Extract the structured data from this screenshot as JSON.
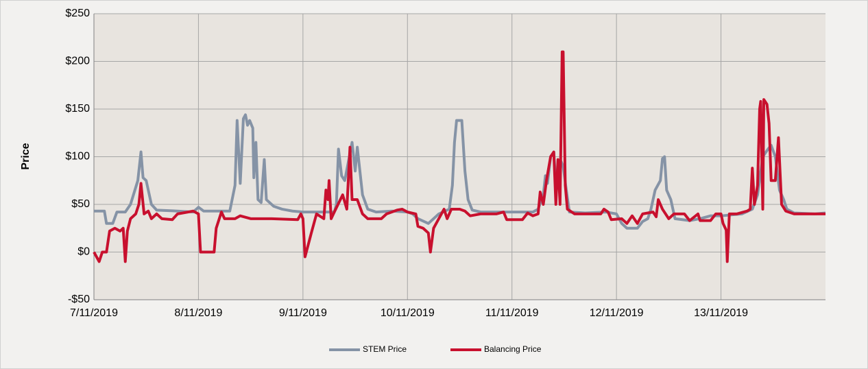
{
  "chart_data": {
    "type": "line",
    "y_label": "Price",
    "xlim": [
      7,
      14
    ],
    "xticks": [
      {
        "value": 7,
        "label": "7/11/2019"
      },
      {
        "value": 8,
        "label": "8/11/2019"
      },
      {
        "value": 9,
        "label": "9/11/2019"
      },
      {
        "value": 10,
        "label": "10/11/2019"
      },
      {
        "value": 11,
        "label": "11/11/2019"
      },
      {
        "value": 12,
        "label": "12/11/2019"
      },
      {
        "value": 13,
        "label": "13/11/2019"
      }
    ],
    "ylim": [
      -50,
      250
    ],
    "yticks": [
      {
        "value": -50,
        "label": "-$50"
      },
      {
        "value": 0,
        "label": "$0"
      },
      {
        "value": 50,
        "label": "$50"
      },
      {
        "value": 100,
        "label": "$100"
      },
      {
        "value": 150,
        "label": "$150"
      },
      {
        "value": 200,
        "label": "$200"
      },
      {
        "value": 250,
        "label": "$250"
      }
    ],
    "grid": true,
    "legend": "bottom",
    "series": [
      {
        "name": "STEM Price",
        "color": "#8593a6",
        "x": [
          7.0,
          7.1,
          7.12,
          7.18,
          7.22,
          7.3,
          7.35,
          7.42,
          7.45,
          7.47,
          7.5,
          7.55,
          7.6,
          7.8,
          7.95,
          8.0,
          8.05,
          8.3,
          8.35,
          8.37,
          8.4,
          8.43,
          8.45,
          8.47,
          8.49,
          8.52,
          8.53,
          8.55,
          8.57,
          8.6,
          8.63,
          8.65,
          8.72,
          8.8,
          8.9,
          9.0,
          9.3,
          9.32,
          9.34,
          9.37,
          9.4,
          9.47,
          9.5,
          9.52,
          9.57,
          9.62,
          9.7,
          9.85,
          10.0,
          10.05,
          10.1,
          10.2,
          10.25,
          10.3,
          10.4,
          10.43,
          10.45,
          10.47,
          10.52,
          10.55,
          10.58,
          10.62,
          10.7,
          11.0,
          11.2,
          11.25,
          11.3,
          11.32,
          11.34,
          11.37,
          11.4,
          11.42,
          11.47,
          11.49,
          11.52,
          11.55,
          11.7,
          11.9,
          12.0,
          12.05,
          12.1,
          12.2,
          12.25,
          12.3,
          12.33,
          12.37,
          12.42,
          12.44,
          12.46,
          12.48,
          12.52,
          12.56,
          12.7,
          12.8,
          12.9,
          13.0,
          13.2,
          13.3,
          13.35,
          13.4,
          13.45,
          13.48,
          13.52,
          13.56,
          13.6,
          13.63,
          13.7,
          13.9,
          14.0
        ],
        "values": [
          43,
          43,
          30,
          30,
          42,
          42,
          50,
          75,
          105,
          78,
          75,
          50,
          44,
          43,
          42,
          47,
          43,
          43,
          70,
          138,
          72,
          140,
          144,
          133,
          138,
          130,
          78,
          115,
          55,
          52,
          97,
          55,
          48,
          45,
          43,
          42,
          42,
          50,
          108,
          80,
          75,
          115,
          85,
          110,
          60,
          45,
          42,
          43,
          42,
          40,
          35,
          30,
          35,
          40,
          45,
          70,
          115,
          138,
          138,
          85,
          55,
          44,
          42,
          42,
          42,
          45,
          60,
          80,
          72,
          100,
          105,
          72,
          95,
          90,
          65,
          42,
          41,
          42,
          40,
          30,
          25,
          25,
          32,
          35,
          45,
          65,
          75,
          98,
          100,
          65,
          55,
          35,
          33,
          35,
          38,
          38,
          40,
          45,
          60,
          100,
          108,
          112,
          100,
          65,
          55,
          45,
          41,
          40,
          41
        ]
      },
      {
        "name": "Balancing Price",
        "color": "#c8102e",
        "x": [
          7.0,
          7.05,
          7.08,
          7.12,
          7.15,
          7.2,
          7.25,
          7.28,
          7.3,
          7.32,
          7.35,
          7.4,
          7.43,
          7.45,
          7.48,
          7.52,
          7.55,
          7.6,
          7.65,
          7.75,
          7.8,
          7.9,
          7.95,
          8.0,
          8.02,
          8.15,
          8.17,
          8.22,
          8.25,
          8.35,
          8.4,
          8.5,
          8.7,
          8.95,
          8.98,
          9.0,
          9.02,
          9.08,
          9.13,
          9.2,
          9.22,
          9.24,
          9.25,
          9.27,
          9.3,
          9.38,
          9.42,
          9.45,
          9.47,
          9.52,
          9.57,
          9.62,
          9.75,
          9.8,
          9.9,
          9.95,
          10.0,
          10.08,
          10.1,
          10.15,
          10.2,
          10.22,
          10.25,
          10.3,
          10.35,
          10.38,
          10.42,
          10.5,
          10.55,
          10.6,
          10.7,
          10.85,
          10.92,
          10.95,
          11.1,
          11.15,
          11.2,
          11.25,
          11.27,
          11.3,
          11.33,
          11.37,
          11.4,
          11.42,
          11.44,
          11.46,
          11.48,
          11.49,
          11.51,
          11.53,
          11.6,
          11.85,
          11.88,
          11.92,
          11.95,
          12.05,
          12.1,
          12.15,
          12.2,
          12.25,
          12.35,
          12.38,
          12.4,
          12.44,
          12.5,
          12.55,
          12.65,
          12.7,
          12.78,
          12.8,
          12.9,
          12.95,
          13.0,
          13.02,
          13.05,
          13.06,
          13.08,
          13.15,
          13.25,
          13.28,
          13.3,
          13.32,
          13.35,
          13.37,
          13.38,
          13.4,
          13.41,
          13.44,
          13.46,
          13.48,
          13.52,
          13.55,
          13.58,
          13.62,
          13.7,
          14.0
        ],
        "values": [
          0,
          -10,
          0,
          0,
          22,
          25,
          22,
          25,
          -10,
          22,
          35,
          40,
          50,
          72,
          40,
          43,
          35,
          40,
          35,
          34,
          40,
          42,
          43,
          40,
          0,
          0,
          25,
          42,
          35,
          35,
          38,
          35,
          35,
          34,
          40,
          35,
          -5,
          20,
          40,
          35,
          65,
          55,
          75,
          35,
          42,
          60,
          45,
          110,
          55,
          55,
          40,
          35,
          35,
          40,
          44,
          45,
          42,
          40,
          27,
          25,
          20,
          0,
          25,
          35,
          45,
          35,
          45,
          45,
          43,
          38,
          40,
          40,
          42,
          34,
          34,
          41,
          38,
          40,
          63,
          50,
          75,
          100,
          105,
          50,
          97,
          50,
          210,
          210,
          70,
          45,
          40,
          40,
          45,
          42,
          34,
          35,
          30,
          38,
          30,
          40,
          42,
          37,
          55,
          45,
          35,
          40,
          40,
          33,
          40,
          33,
          33,
          40,
          40,
          30,
          23,
          -10,
          40,
          40,
          43,
          45,
          88,
          50,
          70,
          150,
          158,
          45,
          160,
          155,
          135,
          75,
          75,
          120,
          50,
          43,
          40,
          40
        ]
      }
    ]
  }
}
